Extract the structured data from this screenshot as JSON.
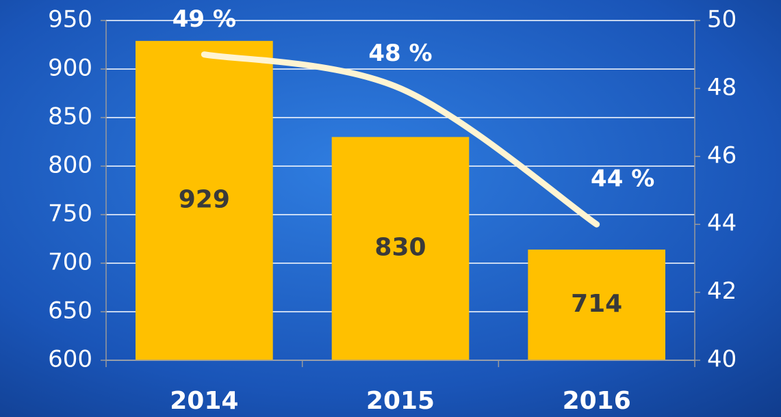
{
  "chart_data": {
    "type": "bar",
    "categories": [
      "2014",
      "2015",
      "2016"
    ],
    "series": [
      {
        "type": "bar",
        "color": "#ffc000",
        "values": [
          929,
          830,
          714
        ]
      },
      {
        "type": "line",
        "axis": "y2",
        "color": "#fff4d2",
        "values": [
          49,
          48,
          44
        ],
        "value_labels": [
          "49 %",
          "48 %",
          "44 %"
        ]
      }
    ],
    "ylim": [
      600,
      950
    ],
    "yticks": [
      600,
      650,
      700,
      750,
      800,
      850,
      900,
      950
    ],
    "y2lim": [
      40,
      50
    ],
    "y2ticks": [
      40,
      42,
      44,
      46,
      48,
      50
    ],
    "grid": true
  }
}
